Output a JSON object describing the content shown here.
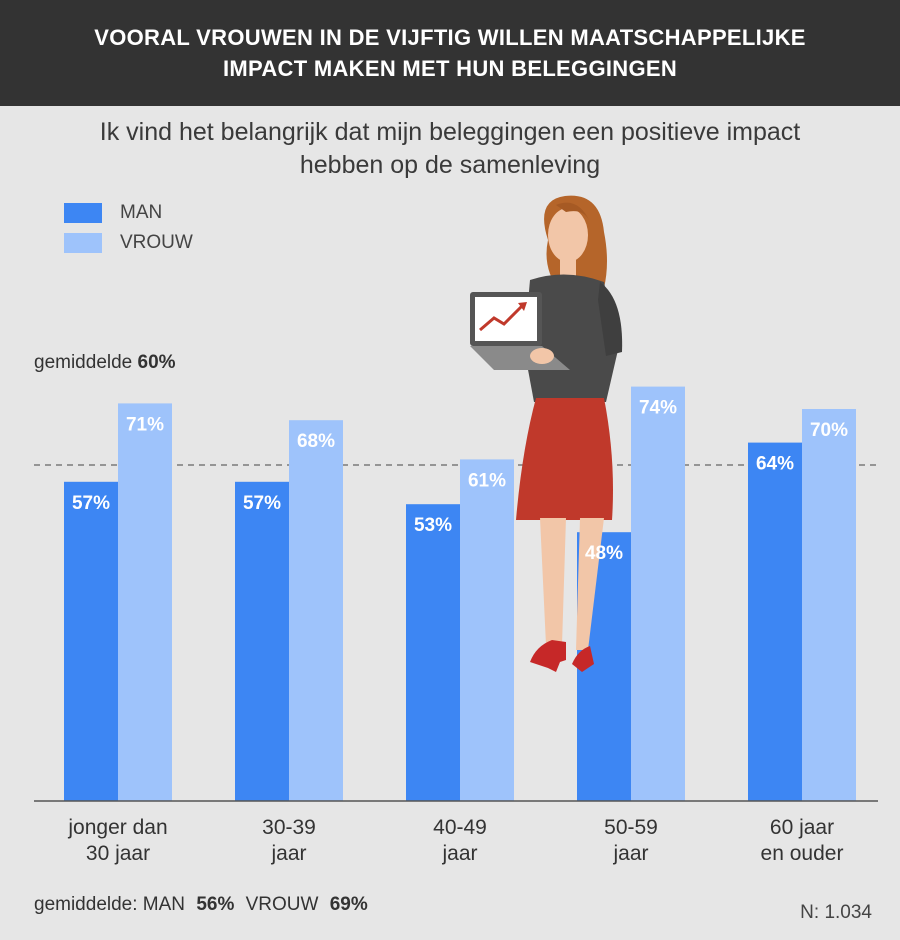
{
  "header": {
    "line1": "VOORAL VROUWEN IN DE VIJFTIG WILLEN MAATSCHAPPELIJKE",
    "line2": "IMPACT MAKEN MET HUN BELEGGINGEN"
  },
  "subtitle": {
    "line1": "Ik vind het belangrijk dat mijn beleggingen een positieve impact",
    "line2": "hebben op de samenleving"
  },
  "legend": [
    {
      "label": "MAN",
      "color": "#3d86f3"
    },
    {
      "label": "VROUW",
      "color": "#9ec3fb"
    }
  ],
  "average_line": {
    "prefix": "gemiddelde",
    "value_label": "60%",
    "value": 60
  },
  "footer": {
    "prefix": "gemiddelde: MAN",
    "man_value": "56%",
    "vrouw_prefix": "VROUW",
    "vrouw_value": "69%",
    "n": "N: 1.034"
  },
  "chart_data": {
    "type": "bar",
    "categories": [
      [
        "jonger dan",
        "30 jaar"
      ],
      [
        "30-39",
        "jaar"
      ],
      [
        "40-49",
        "jaar"
      ],
      [
        "50-59",
        "jaar"
      ],
      [
        "60 jaar",
        "en ouder"
      ]
    ],
    "series": [
      {
        "name": "MAN",
        "color": "#3d86f3",
        "values": [
          57,
          57,
          53,
          48,
          64
        ],
        "labels": [
          "57%",
          "57%",
          "53%",
          "48%",
          "64%"
        ]
      },
      {
        "name": "VROUW",
        "color": "#9ec3fb",
        "values": [
          71,
          68,
          61,
          74,
          70
        ],
        "labels": [
          "71%",
          "68%",
          "61%",
          "74%",
          "70%"
        ]
      }
    ],
    "reference_line": 60,
    "ylim": [
      0,
      100
    ]
  }
}
